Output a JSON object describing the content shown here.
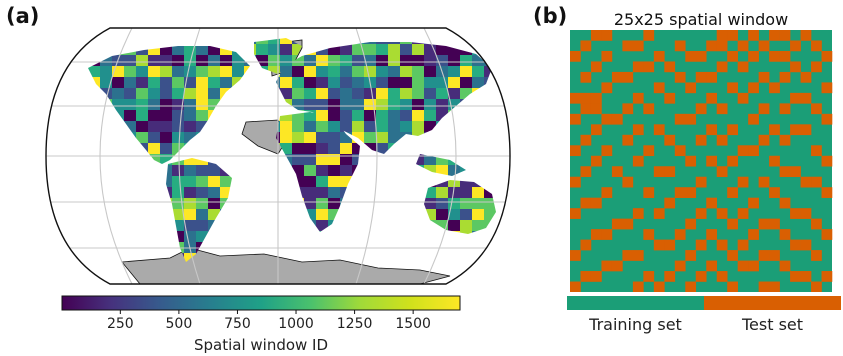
{
  "panel_a_label": "(a)",
  "panel_b_label": "(b)",
  "chart_data": [
    {
      "type": "heatmap",
      "panel": "(a)",
      "colorbar": {
        "label": "Spatial window ID",
        "ticks": [
          250,
          500,
          750,
          1000,
          1250,
          1500
        ],
        "range": [
          1,
          1700
        ],
        "colormap": "viridis"
      },
      "land_color": "#aaaaaa",
      "grid": true
    },
    {
      "type": "heatmap",
      "panel": "(b)",
      "title": "25x25 spatial window",
      "legend": [
        {
          "label": "Training set",
          "color": "#1b9e77"
        },
        {
          "label": "Test set",
          "color": "#d95f02"
        }
      ],
      "legend_placement": "bottom",
      "rows": 25,
      "cols": 25,
      "test_cells": [
        [
          0,
          2
        ],
        [
          0,
          3
        ],
        [
          0,
          7
        ],
        [
          0,
          14
        ],
        [
          0,
          15
        ],
        [
          0,
          17
        ],
        [
          0,
          19
        ],
        [
          0,
          20
        ],
        [
          0,
          22
        ],
        [
          1,
          1
        ],
        [
          1,
          5
        ],
        [
          1,
          6
        ],
        [
          1,
          10
        ],
        [
          1,
          13
        ],
        [
          1,
          14
        ],
        [
          1,
          16
        ],
        [
          1,
          18
        ],
        [
          1,
          21
        ],
        [
          1,
          23
        ],
        [
          2,
          0
        ],
        [
          2,
          3
        ],
        [
          2,
          8
        ],
        [
          2,
          11
        ],
        [
          2,
          12
        ],
        [
          2,
          15
        ],
        [
          2,
          17
        ],
        [
          2,
          19
        ],
        [
          2,
          20
        ],
        [
          2,
          24
        ],
        [
          3,
          2
        ],
        [
          3,
          6
        ],
        [
          3,
          7
        ],
        [
          3,
          9
        ],
        [
          3,
          14
        ],
        [
          3,
          16
        ],
        [
          3,
          21
        ],
        [
          3,
          23
        ],
        [
          4,
          1
        ],
        [
          4,
          4
        ],
        [
          4,
          5
        ],
        [
          4,
          10
        ],
        [
          4,
          12
        ],
        [
          4,
          13
        ],
        [
          4,
          18
        ],
        [
          4,
          20
        ],
        [
          4,
          22
        ],
        [
          5,
          3
        ],
        [
          5,
          8
        ],
        [
          5,
          11
        ],
        [
          5,
          15
        ],
        [
          5,
          17
        ],
        [
          5,
          19
        ],
        [
          5,
          24
        ],
        [
          6,
          0
        ],
        [
          6,
          1
        ],
        [
          6,
          2
        ],
        [
          6,
          6
        ],
        [
          6,
          9
        ],
        [
          6,
          13
        ],
        [
          6,
          16
        ],
        [
          6,
          21
        ],
        [
          6,
          22
        ],
        [
          7,
          1
        ],
        [
          7,
          2
        ],
        [
          7,
          5
        ],
        [
          7,
          7
        ],
        [
          7,
          12
        ],
        [
          7,
          14
        ],
        [
          7,
          18
        ],
        [
          7,
          20
        ],
        [
          7,
          23
        ],
        [
          8,
          0
        ],
        [
          8,
          3
        ],
        [
          8,
          4
        ],
        [
          8,
          10
        ],
        [
          8,
          11
        ],
        [
          8,
          17
        ],
        [
          8,
          24
        ],
        [
          9,
          2
        ],
        [
          9,
          6
        ],
        [
          9,
          8
        ],
        [
          9,
          13
        ],
        [
          9,
          15
        ],
        [
          9,
          19
        ],
        [
          9,
          21
        ],
        [
          9,
          22
        ],
        [
          10,
          1
        ],
        [
          10,
          5
        ],
        [
          10,
          9
        ],
        [
          10,
          12
        ],
        [
          10,
          14
        ],
        [
          10,
          18
        ],
        [
          10,
          20
        ],
        [
          11,
          0
        ],
        [
          11,
          3
        ],
        [
          11,
          7
        ],
        [
          11,
          10
        ],
        [
          11,
          16
        ],
        [
          11,
          17
        ],
        [
          11,
          23
        ],
        [
          12,
          2
        ],
        [
          12,
          6
        ],
        [
          12,
          11
        ],
        [
          12,
          13
        ],
        [
          12,
          15
        ],
        [
          12,
          19
        ],
        [
          12,
          24
        ],
        [
          13,
          1
        ],
        [
          13,
          4
        ],
        [
          13,
          8
        ],
        [
          13,
          9
        ],
        [
          13,
          14
        ],
        [
          13,
          20
        ],
        [
          13,
          21
        ],
        [
          14,
          0
        ],
        [
          14,
          5
        ],
        [
          14,
          12
        ],
        [
          14,
          16
        ],
        [
          14,
          18
        ],
        [
          14,
          22
        ],
        [
          14,
          23
        ],
        [
          15,
          3
        ],
        [
          15,
          7
        ],
        [
          15,
          10
        ],
        [
          15,
          11
        ],
        [
          15,
          15
        ],
        [
          15,
          19
        ],
        [
          15,
          24
        ],
        [
          16,
          1
        ],
        [
          16,
          2
        ],
        [
          16,
          9
        ],
        [
          16,
          13
        ],
        [
          16,
          17
        ],
        [
          16,
          20
        ],
        [
          17,
          0
        ],
        [
          17,
          6
        ],
        [
          17,
          8
        ],
        [
          17,
          12
        ],
        [
          17,
          14
        ],
        [
          17,
          16
        ],
        [
          17,
          21
        ],
        [
          17,
          22
        ],
        [
          18,
          4
        ],
        [
          18,
          5
        ],
        [
          18,
          11
        ],
        [
          18,
          15
        ],
        [
          18,
          18
        ],
        [
          18,
          19
        ],
        [
          18,
          23
        ],
        [
          19,
          2
        ],
        [
          19,
          3
        ],
        [
          19,
          7
        ],
        [
          19,
          10
        ],
        [
          19,
          13
        ],
        [
          19,
          17
        ],
        [
          19,
          20
        ],
        [
          19,
          24
        ],
        [
          20,
          1
        ],
        [
          20,
          8
        ],
        [
          20,
          9
        ],
        [
          20,
          12
        ],
        [
          20,
          14
        ],
        [
          20,
          16
        ],
        [
          20,
          21
        ],
        [
          20,
          22
        ],
        [
          21,
          0
        ],
        [
          21,
          5
        ],
        [
          21,
          6
        ],
        [
          21,
          11
        ],
        [
          21,
          15
        ],
        [
          21,
          18
        ],
        [
          21,
          19
        ],
        [
          21,
          23
        ],
        [
          22,
          3
        ],
        [
          22,
          4
        ],
        [
          22,
          10
        ],
        [
          22,
          13
        ],
        [
          22,
          16
        ],
        [
          22,
          17
        ],
        [
          22,
          20
        ],
        [
          23,
          1
        ],
        [
          23,
          2
        ],
        [
          23,
          7
        ],
        [
          23,
          9
        ],
        [
          23,
          12
        ],
        [
          23,
          14
        ],
        [
          23,
          21
        ],
        [
          23,
          22
        ],
        [
          23,
          24
        ],
        [
          24,
          0
        ],
        [
          24,
          6
        ],
        [
          24,
          8
        ],
        [
          24,
          11
        ],
        [
          24,
          15
        ],
        [
          24,
          18
        ],
        [
          24,
          19
        ],
        [
          24,
          23
        ]
      ]
    }
  ]
}
